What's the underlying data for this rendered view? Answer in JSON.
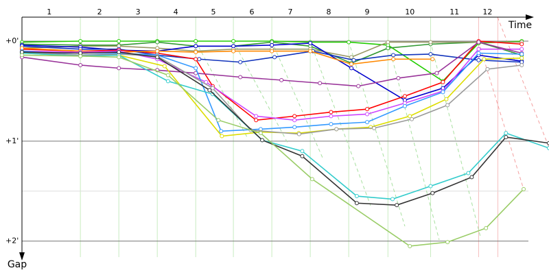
{
  "chart_data": {
    "type": "line",
    "x_label": "Time",
    "y_label": "Gap",
    "xlim": [
      0,
      13.71
    ],
    "ylim": [
      -0.24,
      2.16
    ],
    "xticks": [
      {
        "value": 0.71,
        "label": "1"
      },
      {
        "value": 2.02,
        "label": "2"
      },
      {
        "value": 3.02,
        "label": "3"
      },
      {
        "value": 4.0,
        "label": "4"
      },
      {
        "value": 4.98,
        "label": "5"
      },
      {
        "value": 5.98,
        "label": "6"
      },
      {
        "value": 6.98,
        "label": "7"
      },
      {
        "value": 7.98,
        "label": "8"
      },
      {
        "value": 8.98,
        "label": "9"
      },
      {
        "value": 10.09,
        "label": "10"
      },
      {
        "value": 11.25,
        "label": "11"
      },
      {
        "value": 12.11,
        "label": "12"
      }
    ],
    "lap_lines": [
      1.52,
      2.52,
      3.52,
      4.52,
      5.5,
      6.5,
      7.5,
      8.5,
      9.52,
      10.63,
      11.88,
      12.38
    ],
    "yticks": [
      {
        "value": 0,
        "label": "+0'"
      },
      {
        "value": 1,
        "label": "+1'"
      },
      {
        "value": 2,
        "label": "+2'"
      }
    ],
    "minor_yticks": [
      0.5,
      1.5
    ],
    "grid": true,
    "series": [
      {
        "color": "#22cc00",
        "x": [
          0,
          1.52,
          2.52,
          3.52,
          4.52,
          5.5,
          6.5,
          7.5,
          8.5,
          9.52,
          10.95,
          11.88,
          13.0
        ],
        "values": [
          0.01,
          0,
          0,
          0,
          0,
          0,
          0,
          0.01,
          0.01,
          0.04,
          0.4,
          0.02,
          0
        ]
      },
      {
        "color": "#339933",
        "x": [
          0,
          1.52,
          2.52,
          3.52,
          4.52,
          5.5,
          6.5,
          7.5,
          8.57,
          9.52,
          10.63,
          11.88,
          13.0
        ],
        "values": [
          0.03,
          0.04,
          0.04,
          0.01,
          0.05,
          0.05,
          0.01,
          0.05,
          0.22,
          0.07,
          0.03,
          0.01,
          0.14
        ]
      },
      {
        "color": "#999966",
        "x": [
          0,
          1.52,
          2.52,
          3.52,
          4.52,
          5.5,
          6.5,
          7.5,
          8.57,
          9.52,
          10.63,
          11.88,
          13.0
        ],
        "values": [
          0.07,
          0.05,
          0.05,
          0.07,
          0.1,
          0.08,
          0.08,
          0.08,
          0.16,
          0.01,
          0.01,
          0.01,
          0.01
        ]
      },
      {
        "color": "#0000cc",
        "x": [
          0,
          1.52,
          2.52,
          3.52,
          4.52,
          5.5,
          6.5,
          7.5,
          8.57,
          9.96,
          10.95,
          11.88,
          13.0
        ],
        "values": [
          0.04,
          0.06,
          0.09,
          0.1,
          0.05,
          0.05,
          0.04,
          0.02,
          0.27,
          0.59,
          0.47,
          0.14,
          0.2
        ]
      },
      {
        "color": "#1133bb",
        "x": [
          0,
          1.52,
          2.52,
          3.52,
          4.61,
          5.68,
          6.57,
          7.57,
          8.63,
          9.66,
          10.63,
          11.88,
          13.0
        ],
        "values": [
          0.05,
          0.08,
          0.08,
          0.14,
          0.18,
          0.21,
          0.16,
          0.1,
          0.19,
          0.14,
          0.13,
          0.19,
          0.21
        ]
      },
      {
        "color": "#ff0000",
        "x": [
          0,
          1.52,
          2.52,
          3.52,
          4.52,
          4.96,
          6.09,
          7.09,
          8.04,
          8.98,
          9.96,
          10.95,
          11.88,
          13.0
        ],
        "values": [
          0.08,
          0.1,
          0.09,
          0.12,
          0.18,
          0.45,
          0.79,
          0.75,
          0.71,
          0.68,
          0.55,
          0.41,
          0,
          0.03
        ]
      },
      {
        "color": "#ff8800",
        "x": [
          0,
          1.52,
          2.52,
          3.52,
          4.52,
          5.5,
          6.5,
          7.5,
          8.57,
          9.66,
          10.68
        ],
        "values": [
          0.07,
          0.1,
          0.11,
          0.1,
          0.11,
          0.1,
          0.1,
          0.1,
          0.23,
          0.18,
          0.18
        ]
      },
      {
        "color": "#cc44ff",
        "x": [
          0,
          1.52,
          2.52,
          3.52,
          4.79,
          6.09,
          7.09,
          8.04,
          8.98,
          9.96,
          10.95,
          11.88,
          13.0
        ],
        "values": [
          0.1,
          0.11,
          0.1,
          0.18,
          0.41,
          0.75,
          0.79,
          0.75,
          0.73,
          0.62,
          0.5,
          0.08,
          0.08
        ]
      },
      {
        "color": "#993399",
        "x": [
          0,
          1.52,
          2.52,
          3.52,
          4.52,
          5.68,
          6.75,
          7.75,
          8.75,
          9.79,
          10.79,
          11.88,
          13.0
        ],
        "values": [
          0.16,
          0.24,
          0.27,
          0.29,
          0.32,
          0.36,
          0.39,
          0.42,
          0.45,
          0.37,
          0.32,
          0.01,
          0.12
        ]
      },
      {
        "color": "#3399ff",
        "x": [
          0,
          1.52,
          2.52,
          3.52,
          4.52,
          5.18,
          6.21,
          7.09,
          8.04,
          8.98,
          9.96,
          10.95,
          11.88,
          13.0
        ],
        "values": [
          0.1,
          0.14,
          0.12,
          0.14,
          0.27,
          0.9,
          0.88,
          0.86,
          0.83,
          0.81,
          0.65,
          0.51,
          0.12,
          0.13
        ]
      },
      {
        "color": "#dddd00",
        "x": [
          0,
          1.52,
          2.52,
          3.71,
          5.2,
          6.21,
          7.2,
          8.18,
          9.07,
          10.09,
          11.04,
          12.02,
          13.0
        ],
        "values": [
          0.12,
          0.15,
          0.14,
          0.25,
          0.95,
          0.91,
          0.92,
          0.88,
          0.86,
          0.75,
          0.58,
          0.18,
          0.17
        ]
      },
      {
        "color": "#999999",
        "x": [
          0,
          1.52,
          2.52,
          3.52,
          4.96,
          5.95,
          7.21,
          8.18,
          9.16,
          10.14,
          11.07,
          12.11,
          13.0
        ],
        "values": [
          0.11,
          0.14,
          0.13,
          0.15,
          0.47,
          0.89,
          0.93,
          0.88,
          0.87,
          0.78,
          0.64,
          0.28,
          0.24
        ]
      },
      {
        "color": "#33cccc",
        "x": [
          0,
          1.52,
          2.52,
          3.8,
          4.96,
          6.25,
          7.29,
          8.71,
          9.64,
          10.63,
          11.61,
          12.59,
          13.71
        ],
        "values": [
          0.12,
          0.15,
          0.14,
          0.4,
          0.53,
          0.99,
          1.1,
          1.55,
          1.58,
          1.45,
          1.32,
          0.92,
          1.07
        ]
      },
      {
        "color": "#333333",
        "x": [
          0,
          1.52,
          2.52,
          3.52,
          4.88,
          6.25,
          7.29,
          8.71,
          9.75,
          10.68,
          11.7,
          12.59,
          13.71
        ],
        "values": [
          0.11,
          0.12,
          0.11,
          0.16,
          0.49,
          0.99,
          1.15,
          1.62,
          1.64,
          1.52,
          1.36,
          0.96,
          1.02
        ]
      },
      {
        "color": "#99cc66",
        "x": [
          0,
          1.52,
          2.52,
          3.8,
          5.11,
          6.21,
          7.55,
          10.09,
          11.07,
          12.07,
          13.05
        ],
        "values": [
          0.14,
          0.15,
          0.16,
          0.34,
          0.79,
          0.92,
          1.38,
          2.05,
          2.01,
          1.87,
          1.48
        ]
      }
    ]
  }
}
